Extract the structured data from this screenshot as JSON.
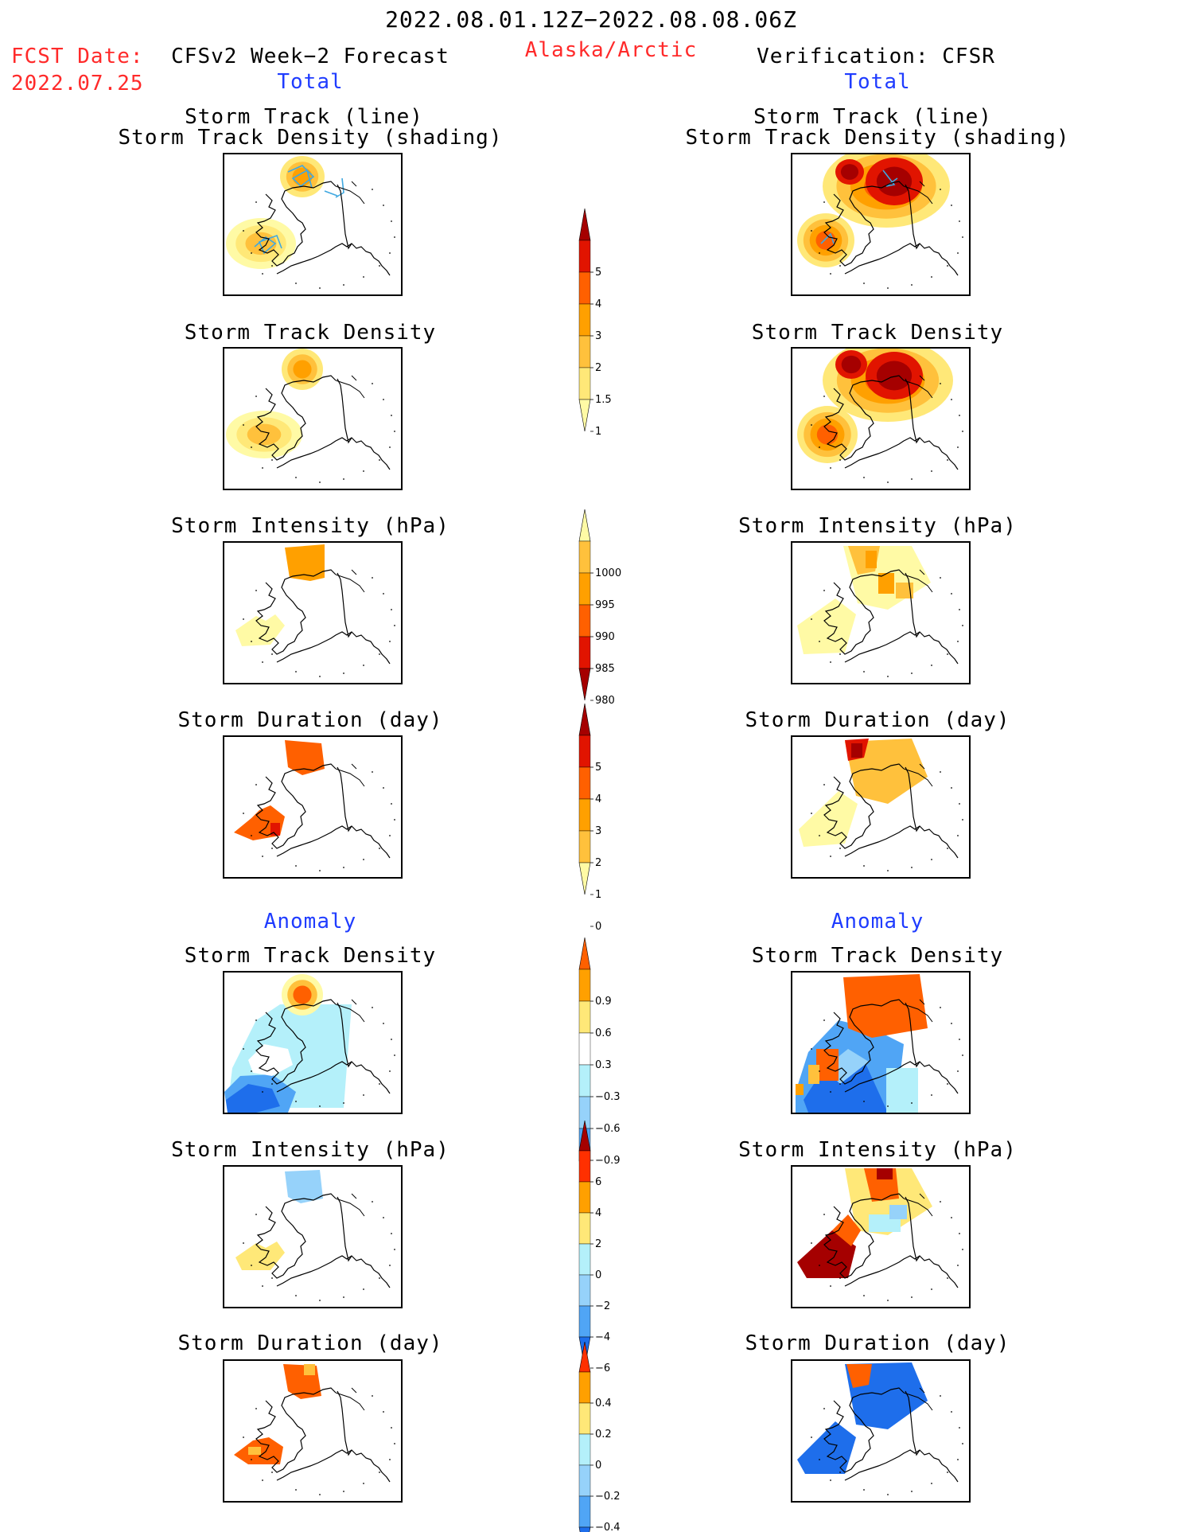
{
  "header": {
    "period": "2022.08.01.12Z−2022.08.08.06Z",
    "fcst_date_label": "FCST Date:",
    "fcst_date_value": "2022.07.25",
    "left_title": "CFSv2 Week−2 Forecast",
    "region": "Alaska/Arctic",
    "right_title": "Verification: CFSR",
    "left_section": "Total",
    "right_section": "Total"
  },
  "titles": {
    "track_line": "Storm Track (line)",
    "track_shading": "Storm Track Density (shading)",
    "density": "Storm Track Density",
    "intensity": "Storm Intensity (hPa)",
    "duration": "Storm Duration (day)",
    "anomaly": "Anomaly"
  },
  "colors": {
    "c1": "#fffaa5",
    "c15": "#ffe878",
    "c2": "#ffc13c",
    "c3": "#ffa000",
    "c4": "#ff6000",
    "c5": "#e11400",
    "c6": "#a50000",
    "b1": "#b4f0fa",
    "b2": "#96d2fa",
    "b3": "#50a5f5",
    "b4": "#1e6eeb",
    "b5": "#1a4ec8",
    "track": "#40a8e0"
  },
  "chart_data": [
    {
      "type": "colorbar",
      "variable": "Storm Track Density (Total)",
      "ticks": [
        "1",
        "1.5",
        "2",
        "3",
        "4",
        "5"
      ],
      "colors": [
        "#fffaa5",
        "#ffe878",
        "#ffc13c",
        "#ffa000",
        "#ff6000",
        "#e11400",
        "#a50000"
      ]
    },
    {
      "type": "colorbar",
      "variable": "Storm Intensity (Total, hPa)",
      "ticks": [
        "1000",
        "995",
        "990",
        "985",
        "980"
      ],
      "colors": [
        "#fffaa5",
        "#ffc13c",
        "#ffa000",
        "#ff6000",
        "#e11400",
        "#a50000"
      ]
    },
    {
      "type": "colorbar",
      "variable": "Storm Duration (Total, day)",
      "ticks": [
        "0",
        "1",
        "2",
        "3",
        "4",
        "5"
      ],
      "colors": [
        "#fffaa5",
        "#ffc13c",
        "#ffa000",
        "#ff6000",
        "#e11400",
        "#a50000"
      ]
    },
    {
      "type": "colorbar",
      "variable": "Storm Track Density (Anomaly)",
      "ticks": [
        "0.9",
        "0.6",
        "0.3",
        "−0.3",
        "−0.6",
        "−0.9"
      ],
      "colors": [
        "#ff6000",
        "#ffa000",
        "#ffe878",
        "#ffffff",
        "#b4f0fa",
        "#96d2fa",
        "#50a5f5",
        "#1e6eeb"
      ]
    },
    {
      "type": "colorbar",
      "variable": "Storm Intensity (Anomaly, hPa)",
      "ticks": [
        "6",
        "4",
        "2",
        "0",
        "−2",
        "−4",
        "−6"
      ],
      "colors": [
        "#a50000",
        "#ff3000",
        "#ffa000",
        "#ffe878",
        "#b4f0fa",
        "#96d2fa",
        "#50a5f5",
        "#1e6eeb"
      ]
    },
    {
      "type": "colorbar",
      "variable": "Storm Duration (Anomaly, day)",
      "ticks": [
        "0.4",
        "0.2",
        "0",
        "−0.2",
        "−0.4"
      ],
      "colors": [
        "#ff3000",
        "#ffa000",
        "#ffe878",
        "#b4f0fa",
        "#96d2fa",
        "#50a5f5",
        "#1e6eeb"
      ]
    }
  ]
}
